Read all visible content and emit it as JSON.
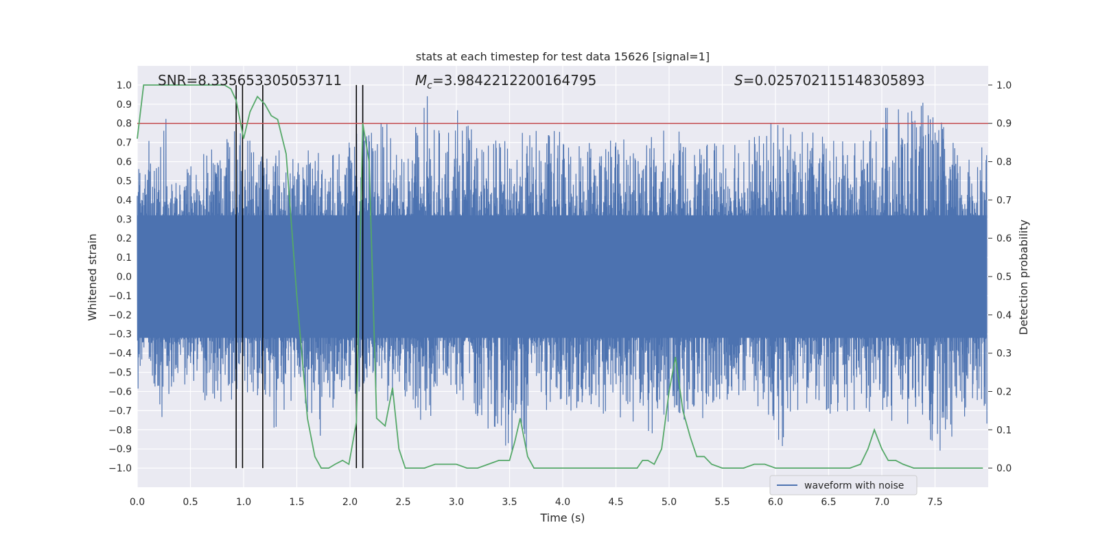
{
  "chart_data": {
    "type": "line",
    "title": "stats at each timestep for test data 15626 [signal=1]",
    "xlabel": "Time (s)",
    "ylabel": "Whitened strain",
    "ylabel_right": "Detection probability",
    "xlim": [
      0,
      8
    ],
    "ylim": [
      -1.1,
      1.1
    ],
    "ylim_right": [
      -0.05,
      1.05
    ],
    "grid": true,
    "legend_position": "lower-right",
    "x_ticks": [
      0.0,
      0.5,
      1.0,
      1.5,
      2.0,
      2.5,
      3.0,
      3.5,
      4.0,
      4.5,
      5.0,
      5.5,
      6.0,
      6.5,
      7.0,
      7.5
    ],
    "x_tick_labels": [
      "0.0",
      "0.5",
      "1.0",
      "1.5",
      "2.0",
      "2.5",
      "3.0",
      "3.5",
      "4.0",
      "4.5",
      "5.0",
      "5.5",
      "6.0",
      "6.5",
      "7.0",
      "7.5"
    ],
    "y_ticks": [
      1.0,
      0.9,
      0.8,
      0.7,
      0.6,
      0.5,
      0.4,
      0.3,
      0.2,
      0.1,
      0.0,
      -0.1,
      -0.2,
      -0.3,
      -0.4,
      -0.5,
      -0.6,
      -0.7,
      -0.8,
      -0.9,
      -1.0
    ],
    "y_tick_labels": [
      "1.0",
      "0.9",
      "0.8",
      "0.7",
      "0.6",
      "0.5",
      "0.4",
      "0.3",
      "0.2",
      "0.1",
      "0.0",
      "−0.1",
      "−0.2",
      "−0.3",
      "−0.4",
      "−0.5",
      "−0.6",
      "−0.7",
      "−0.8",
      "−0.9",
      "−1.0"
    ],
    "y_ticks_right": [
      1.0,
      0.9,
      0.8,
      0.7,
      0.6,
      0.5,
      0.4,
      0.3,
      0.2,
      0.1,
      0.0
    ],
    "y_tick_labels_right": [
      "1.0",
      "0.9",
      "0.8",
      "0.7",
      "0.6",
      "0.5",
      "0.4",
      "0.3",
      "0.2",
      "0.1",
      "0.0"
    ],
    "annotations": {
      "snr": "SNR=8.335653305053711",
      "mc_symbol": "M",
      "mc_subscript": "c",
      "mc_value": "=3.9842212200164795",
      "s_symbol": "S",
      "s_value": "=0.025702115148305893"
    },
    "threshold_right": 0.9,
    "vertical_lines_x": [
      0.93,
      0.99,
      1.18,
      2.06,
      2.12
    ],
    "series": [
      {
        "name": "waveform with noise",
        "color": "#4c72b0",
        "description_of_values": "dense noisy strain trace; values listed are peak envelope samples",
        "x_envelope": [
          0.0,
          0.05,
          0.1,
          0.15,
          0.23,
          0.3,
          0.35,
          0.5,
          0.7,
          0.95,
          1.13,
          1.35,
          1.5,
          1.7,
          1.95,
          2.1,
          2.3,
          2.55,
          2.7,
          2.85,
          3.0,
          3.2,
          3.55,
          3.62,
          3.9,
          4.2,
          4.6,
          4.85,
          5.05,
          5.3,
          5.6,
          5.9,
          6.0,
          6.2,
          6.55,
          6.85,
          7.05,
          7.35,
          7.6,
          7.8,
          7.99
        ],
        "upper_envelope": [
          0.62,
          0.49,
          0.78,
          0.55,
          0.9,
          0.79,
          0.55,
          0.62,
          0.7,
          0.8,
          0.75,
          0.69,
          0.62,
          0.7,
          0.67,
          0.8,
          0.82,
          0.7,
          1.0,
          0.75,
          0.9,
          0.72,
          0.71,
          0.76,
          0.78,
          0.75,
          0.74,
          0.75,
          0.79,
          0.66,
          0.86,
          0.72,
          0.88,
          0.78,
          0.72,
          0.72,
          0.94,
          0.94,
          0.78,
          0.6,
          0.8
        ],
        "lower_envelope": [
          -0.66,
          -0.4,
          -0.45,
          -0.55,
          -0.83,
          -0.65,
          -0.55,
          -0.62,
          -0.72,
          -0.62,
          -0.7,
          -0.86,
          -0.55,
          -0.87,
          -0.69,
          -0.6,
          -0.68,
          -0.62,
          -0.86,
          -0.55,
          -0.62,
          -0.74,
          -0.95,
          -0.95,
          -0.65,
          -0.74,
          -0.75,
          -0.83,
          -0.74,
          -0.78,
          -0.62,
          -0.7,
          -0.98,
          -0.7,
          -0.75,
          -0.7,
          -0.75,
          -0.78,
          -0.98,
          -0.7,
          -0.84
        ]
      },
      {
        "name": "",
        "color": "#55a868",
        "axis": "right",
        "x": [
          0.0,
          0.06,
          0.12,
          0.2,
          0.3,
          0.5,
          0.7,
          0.82,
          0.88,
          0.93,
          1.0,
          1.06,
          1.13,
          1.2,
          1.26,
          1.32,
          1.4,
          1.5,
          1.6,
          1.67,
          1.73,
          1.8,
          1.86,
          1.93,
          1.99,
          2.06,
          2.12,
          2.18,
          2.25,
          2.33,
          2.4,
          2.46,
          2.52,
          2.6,
          2.7,
          2.8,
          2.86,
          2.93,
          3.0,
          3.1,
          3.2,
          3.3,
          3.4,
          3.5,
          3.55,
          3.6,
          3.67,
          3.73,
          3.8,
          3.9,
          4.0,
          4.1,
          4.2,
          4.3,
          4.4,
          4.5,
          4.6,
          4.65,
          4.7,
          4.75,
          4.8,
          4.86,
          4.93,
          5.0,
          5.06,
          5.13,
          5.2,
          5.26,
          5.33,
          5.4,
          5.5,
          5.6,
          5.7,
          5.8,
          5.9,
          6.0,
          6.1,
          6.2,
          6.3,
          6.4,
          6.5,
          6.6,
          6.7,
          6.8,
          6.87,
          6.93,
          7.0,
          7.06,
          7.13,
          7.2,
          7.3,
          7.4,
          7.5,
          7.6,
          7.7,
          7.8,
          7.95
        ],
        "y": [
          0.86,
          1.0,
          1.0,
          1.0,
          1.0,
          1.0,
          1.0,
          1.0,
          0.99,
          0.96,
          0.86,
          0.93,
          0.97,
          0.95,
          0.92,
          0.91,
          0.82,
          0.45,
          0.13,
          0.03,
          0.0,
          0.0,
          0.01,
          0.02,
          0.01,
          0.12,
          0.9,
          0.8,
          0.13,
          0.11,
          0.21,
          0.05,
          0.0,
          0.0,
          0.0,
          0.01,
          0.01,
          0.01,
          0.01,
          0.0,
          0.0,
          0.01,
          0.02,
          0.02,
          0.07,
          0.13,
          0.03,
          0.0,
          0.0,
          0.0,
          0.0,
          0.0,
          0.0,
          0.0,
          0.0,
          0.0,
          0.0,
          0.0,
          0.0,
          0.02,
          0.02,
          0.01,
          0.05,
          0.2,
          0.29,
          0.15,
          0.08,
          0.03,
          0.03,
          0.01,
          0.0,
          0.0,
          0.0,
          0.01,
          0.01,
          0.0,
          0.0,
          0.0,
          0.0,
          0.0,
          0.0,
          0.0,
          0.0,
          0.01,
          0.05,
          0.1,
          0.05,
          0.02,
          0.02,
          0.01,
          0.0,
          0.0,
          0.0,
          0.0,
          0.0,
          0.0,
          0.0
        ]
      }
    ],
    "colors": {
      "background": "#eaeaf2",
      "grid": "#ffffff",
      "waveform": "#4c72b0",
      "probability": "#55a868",
      "threshold": "#c44e52",
      "vlines": "#000000"
    }
  }
}
